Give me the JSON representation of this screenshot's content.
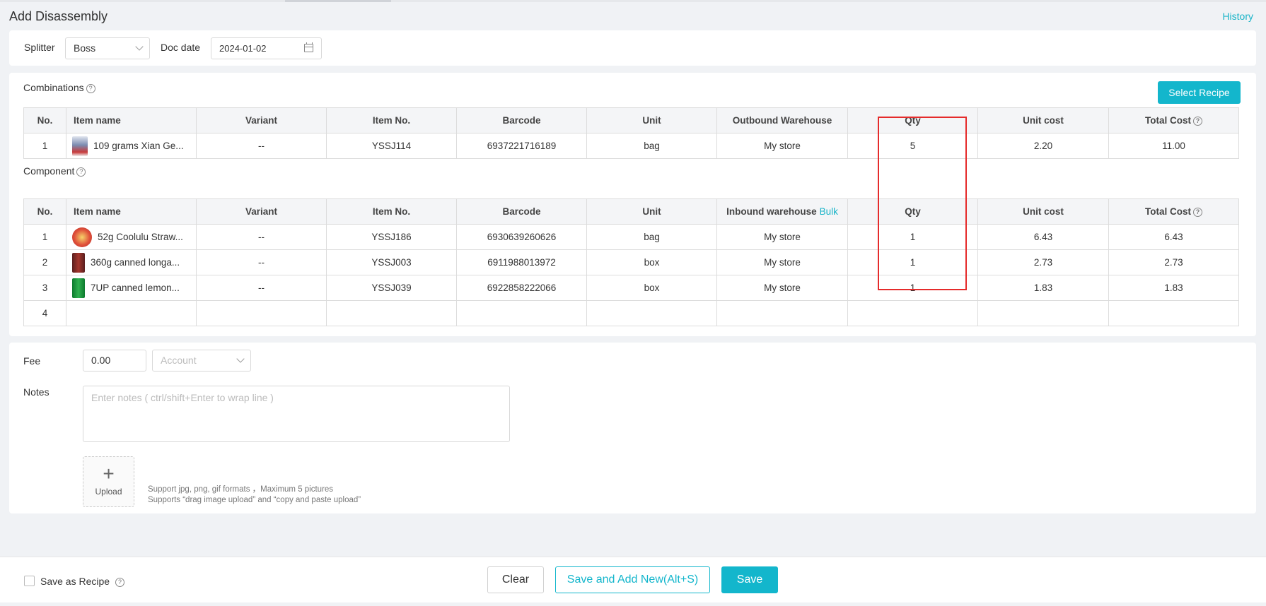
{
  "page": {
    "title": "Add Disassembly",
    "history_link": "History"
  },
  "header_form": {
    "splitter_label": "Splitter",
    "splitter_value": "Boss",
    "doc_date_label": "Doc date",
    "doc_date_value": "2024-01-02"
  },
  "combinations": {
    "title": "Combinations",
    "select_recipe_button": "Select Recipe",
    "columns": [
      "No.",
      "Item name",
      "Variant",
      "Item No.",
      "Barcode",
      "Unit",
      "Outbound Warehouse",
      "Qty",
      "Unit cost",
      "Total Cost"
    ],
    "rows": [
      {
        "no": "1",
        "item_name": "109 grams Xian Ge...",
        "variant": "--",
        "item_no": "YSSJ114",
        "barcode": "6937221716189",
        "unit": "bag",
        "warehouse": "My store",
        "qty": "5",
        "unit_cost": "2.20",
        "total_cost": "11.00",
        "thumb": "snack-bag-image"
      }
    ]
  },
  "component": {
    "title": "Component",
    "bulk_link": "Bulk",
    "columns": [
      "No.",
      "Item name",
      "Variant",
      "Item No.",
      "Barcode",
      "Unit",
      "Inbound warehouse",
      "Qty",
      "Unit cost",
      "Total Cost"
    ],
    "rows": [
      {
        "no": "1",
        "item_name": "52g Coolulu Straw...",
        "variant": "--",
        "item_no": "YSSJ186",
        "barcode": "6930639260626",
        "unit": "bag",
        "warehouse": "My store",
        "qty": "1",
        "unit_cost": "6.43",
        "total_cost": "6.43",
        "thumb": "candy-bag-image"
      },
      {
        "no": "2",
        "item_name": "360g canned longa...",
        "variant": "--",
        "item_no": "YSSJ003",
        "barcode": "6911988013972",
        "unit": "box",
        "warehouse": "My store",
        "qty": "1",
        "unit_cost": "2.73",
        "total_cost": "2.73",
        "thumb": "can-image"
      },
      {
        "no": "3",
        "item_name": "7UP canned lemon...",
        "variant": "--",
        "item_no": "YSSJ039",
        "barcode": "6922858222066",
        "unit": "box",
        "warehouse": "My store",
        "qty": "1",
        "unit_cost": "1.83",
        "total_cost": "1.83",
        "thumb": "soda-can-image"
      },
      {
        "no": "4",
        "item_name": "",
        "variant": "",
        "item_no": "",
        "barcode": "",
        "unit": "",
        "warehouse": "",
        "qty": "",
        "unit_cost": "",
        "total_cost": ""
      }
    ]
  },
  "extra": {
    "fee_label": "Fee",
    "fee_value": "0.00",
    "account_placeholder": "Account",
    "notes_label": "Notes",
    "notes_placeholder": "Enter notes ( ctrl/shift+Enter to wrap line )",
    "upload_label": "Upload",
    "upload_hint_1": "Support jpg, png, gif formats ，Maximum 5 pictures",
    "upload_hint_2": "Supports “drag image upload” and “copy and paste upload”"
  },
  "footer": {
    "save_as_recipe_label": "Save as Recipe",
    "clear_button": "Clear",
    "save_add_new_button": "Save and Add New(Alt+S)",
    "save_button": "Save"
  },
  "colors": {
    "accent": "#13b6cc",
    "highlight": "#e52b2b"
  }
}
